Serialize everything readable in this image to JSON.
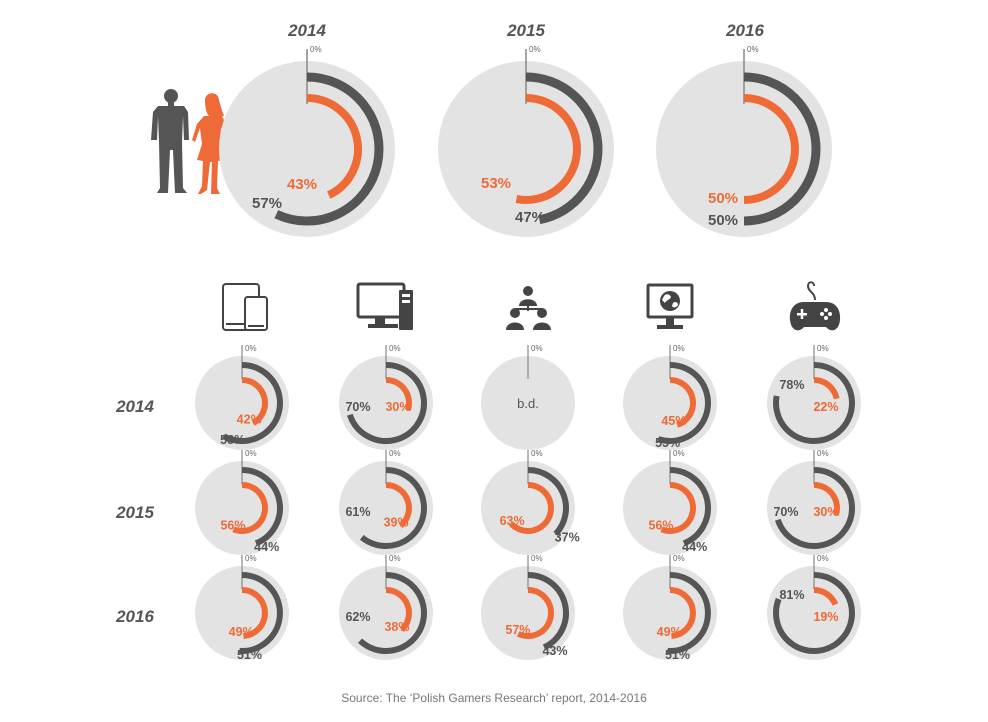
{
  "colors": {
    "female": "#ee6a36",
    "male": "#555555",
    "disc": "#e3e3e3",
    "icon": "#444444"
  },
  "chart_data": {
    "type": "radial-bar",
    "zero_label": "0%",
    "no_data_label": "b.d.",
    "source": "Source: The ‘Polish Gamers Research’ report, 2014-2016",
    "gender_by_year": [
      {
        "year": "2014",
        "female": 43,
        "male": 57,
        "female_label": "43%",
        "male_label": "57%"
      },
      {
        "year": "2015",
        "female": 53,
        "male": 47,
        "female_label": "53%",
        "male_label": "47%"
      },
      {
        "year": "2016",
        "female": 50,
        "male": 50,
        "female_label": "50%",
        "male_label": "50%"
      }
    ],
    "platforms": [
      {
        "icon": "tablet-smartphone-icon",
        "values": [
          {
            "year": "2014",
            "female": 42,
            "male": 58,
            "female_label": "42%",
            "male_label": "58%"
          },
          {
            "year": "2015",
            "female": 56,
            "male": 44,
            "female_label": "56%",
            "male_label": "44%"
          },
          {
            "year": "2016",
            "female": 49,
            "male": 51,
            "female_label": "49%",
            "male_label": "51%"
          }
        ]
      },
      {
        "icon": "desktop-computer-icon",
        "values": [
          {
            "year": "2014",
            "female": 30,
            "male": 70,
            "female_label": "30%",
            "male_label": "70%"
          },
          {
            "year": "2015",
            "female": 39,
            "male": 61,
            "female_label": "39%",
            "male_label": "61%"
          },
          {
            "year": "2016",
            "female": 38,
            "male": 62,
            "female_label": "38%",
            "male_label": "62%"
          }
        ]
      },
      {
        "icon": "social-network-icon",
        "values": [
          {
            "year": "2014",
            "female": null,
            "male": null,
            "female_label": "",
            "male_label": ""
          },
          {
            "year": "2015",
            "female": 63,
            "male": 37,
            "female_label": "63%",
            "male_label": "37%"
          },
          {
            "year": "2016",
            "female": 57,
            "male": 43,
            "female_label": "57%",
            "male_label": "43%"
          }
        ]
      },
      {
        "icon": "monitor-globe-icon",
        "values": [
          {
            "year": "2014",
            "female": 45,
            "male": 55,
            "female_label": "45%",
            "male_label": "55%"
          },
          {
            "year": "2015",
            "female": 56,
            "male": 44,
            "female_label": "56%",
            "male_label": "44%"
          },
          {
            "year": "2016",
            "female": 49,
            "male": 51,
            "female_label": "49%",
            "male_label": "51%"
          }
        ]
      },
      {
        "icon": "gamepad-icon",
        "values": [
          {
            "year": "2014",
            "female": 22,
            "male": 78,
            "female_label": "22%",
            "male_label": "78%"
          },
          {
            "year": "2015",
            "female": 30,
            "male": 70,
            "female_label": "30%",
            "male_label": "70%"
          },
          {
            "year": "2016",
            "female": 19,
            "male": 81,
            "female_label": "19%",
            "male_label": "81%"
          }
        ]
      }
    ]
  }
}
